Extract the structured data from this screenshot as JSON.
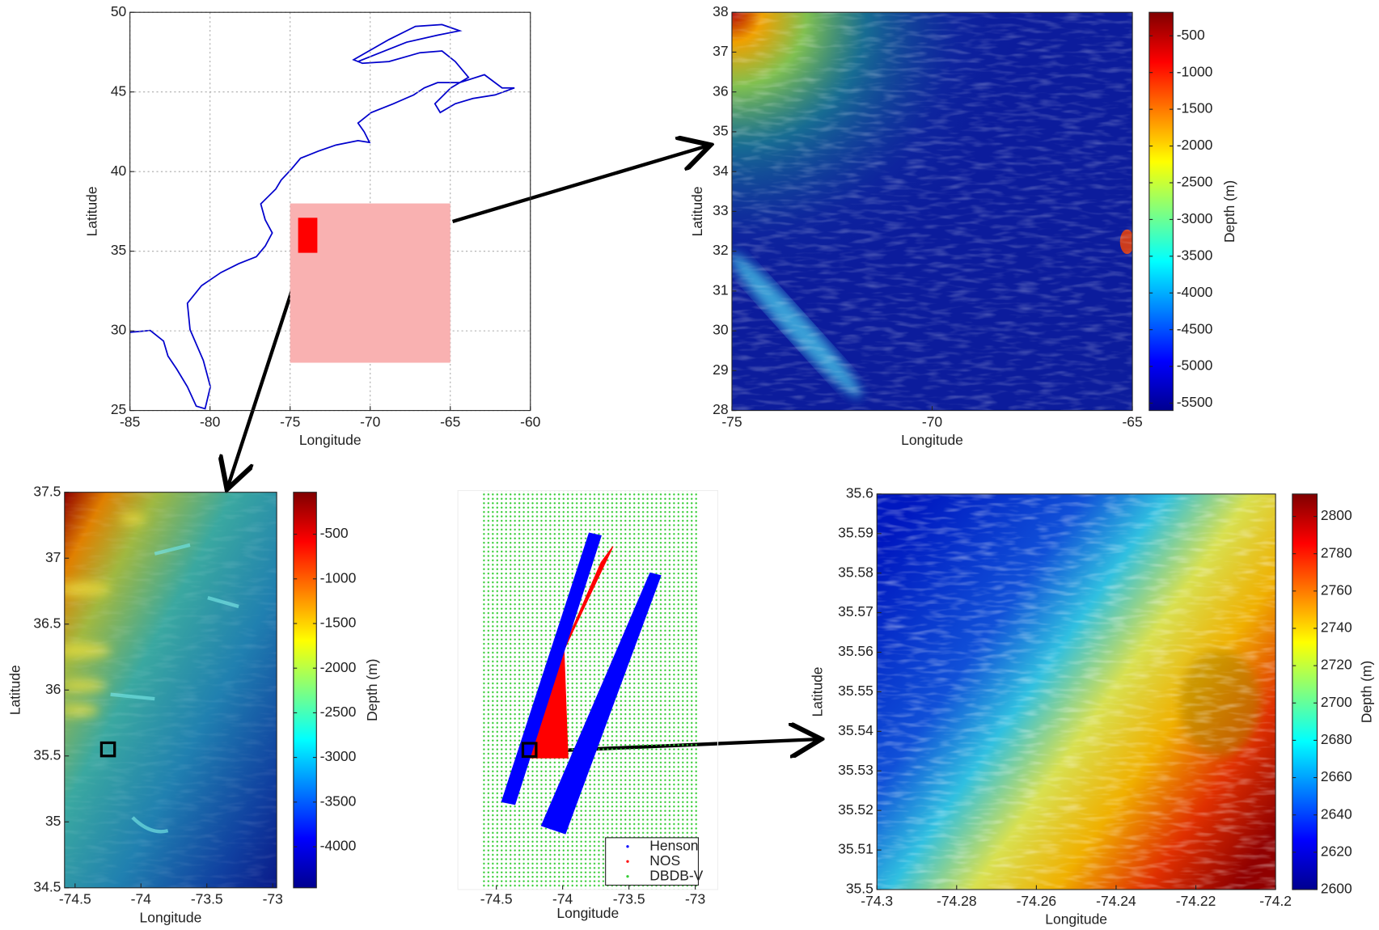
{
  "chart_data": [
    {
      "type": "map",
      "xlabel": "Longitude",
      "ylabel": "Latitude",
      "xlim": [
        -85,
        -60
      ],
      "ylim": [
        25,
        50
      ],
      "xticks": [
        -85,
        -80,
        -75,
        -70,
        -65,
        -60
      ],
      "yticks": [
        25,
        30,
        35,
        40,
        45,
        50
      ],
      "grid": true,
      "regions": [
        {
          "xlim": [
            -75,
            -65
          ],
          "ylim": [
            28,
            38
          ],
          "color": "#f9b1b1",
          "filled": true
        },
        {
          "xlim": [
            -74.5,
            -73.3
          ],
          "ylim": [
            34.9,
            37.1
          ],
          "color": "#ff0000",
          "filled": true
        }
      ]
    },
    {
      "type": "heatmap",
      "xlabel": "Longitude",
      "ylabel": "Latitude",
      "xlim": [
        -75,
        -65
      ],
      "ylim": [
        28,
        38
      ],
      "xticks": [
        -75,
        -70,
        -65
      ],
      "yticks": [
        28,
        29,
        30,
        31,
        32,
        33,
        34,
        35,
        36,
        37,
        38
      ],
      "colormap": "jet",
      "clim": [
        -5600,
        -180
      ],
      "cticks": [
        -500,
        -1000,
        -1500,
        -2000,
        -2500,
        -3000,
        -3500,
        -4000,
        -4500,
        -5000,
        -5500
      ],
      "colorbar_label": "Depth (m)"
    },
    {
      "type": "heatmap",
      "xlabel": "Longitude",
      "ylabel": "Latitude",
      "xlim": [
        -74.58,
        -72.97
      ],
      "ylim": [
        34.5,
        37.5
      ],
      "xticks": [
        -74.5,
        -74,
        -73.5,
        -73
      ],
      "yticks": [
        34.5,
        35,
        35.5,
        36,
        36.5,
        37,
        37.5
      ],
      "colormap": "jet",
      "clim": [
        -4460,
        -30
      ],
      "cticks": [
        -500,
        -1000,
        -1500,
        -2000,
        -2500,
        -3000,
        -3500,
        -4000
      ],
      "colorbar_label": "Depth (m)",
      "regions": [
        {
          "xlim": [
            -74.3,
            -74.2
          ],
          "ylim": [
            35.5,
            35.6
          ],
          "color": "#000000",
          "filled": false
        }
      ]
    },
    {
      "type": "scatter",
      "xlabel": "Longitude",
      "xlim": [
        -74.79,
        -72.83
      ],
      "ylim": [
        34.5,
        37.5
      ],
      "xticks": [
        -74.5,
        -74,
        -73.5,
        -73
      ],
      "legend": "lower right",
      "series": [
        {
          "name": "Henson",
          "color": "#0000ff",
          "fill": "solid",
          "x": [
            -74.46,
            -74.36,
            -73.71,
            -73.8,
            null,
            -74.16,
            -73.98,
            -73.26,
            -73.34
          ],
          "values": [
            35.16,
            35.14,
            37.16,
            37.18,
            null,
            34.98,
            34.92,
            36.86,
            36.88
          ]
        },
        {
          "name": "NOS",
          "color": "#ff0000",
          "fill": "solid",
          "x": [
            -74.35,
            -73.96,
            -73.99,
            -73.62,
            -73.71
          ],
          "values": [
            35.49,
            35.49,
            36.3,
            37.08,
            36.96
          ]
        },
        {
          "name": "DBDB-V",
          "color": "#33cc33",
          "fill": "dots",
          "x": [
            -74.61,
            -72.98,
            -72.98,
            -74.61
          ],
          "values": [
            34.5,
            34.5,
            37.5,
            37.5
          ]
        }
      ],
      "regions": [
        {
          "xlim": [
            -74.3,
            -74.2
          ],
          "ylim": [
            35.5,
            35.6
          ],
          "color": "#000000",
          "filled": false
        }
      ]
    },
    {
      "type": "heatmap",
      "xlabel": "Longitude",
      "ylabel": "Latitude",
      "xlim": [
        -74.3,
        -74.2
      ],
      "ylim": [
        35.5,
        35.6
      ],
      "xticks": [
        -74.3,
        -74.28,
        -74.26,
        -74.24,
        -74.22,
        -74.2
      ],
      "yticks": [
        35.5,
        35.51,
        35.52,
        35.53,
        35.54,
        35.55,
        35.56,
        35.57,
        35.58,
        35.59,
        35.6
      ],
      "colormap": "jet",
      "clim": [
        2600,
        2812
      ],
      "cticks": [
        2600,
        2620,
        2640,
        2660,
        2680,
        2700,
        2720,
        2740,
        2760,
        2780,
        2800
      ],
      "colorbar_label": "Depth (m)"
    }
  ]
}
